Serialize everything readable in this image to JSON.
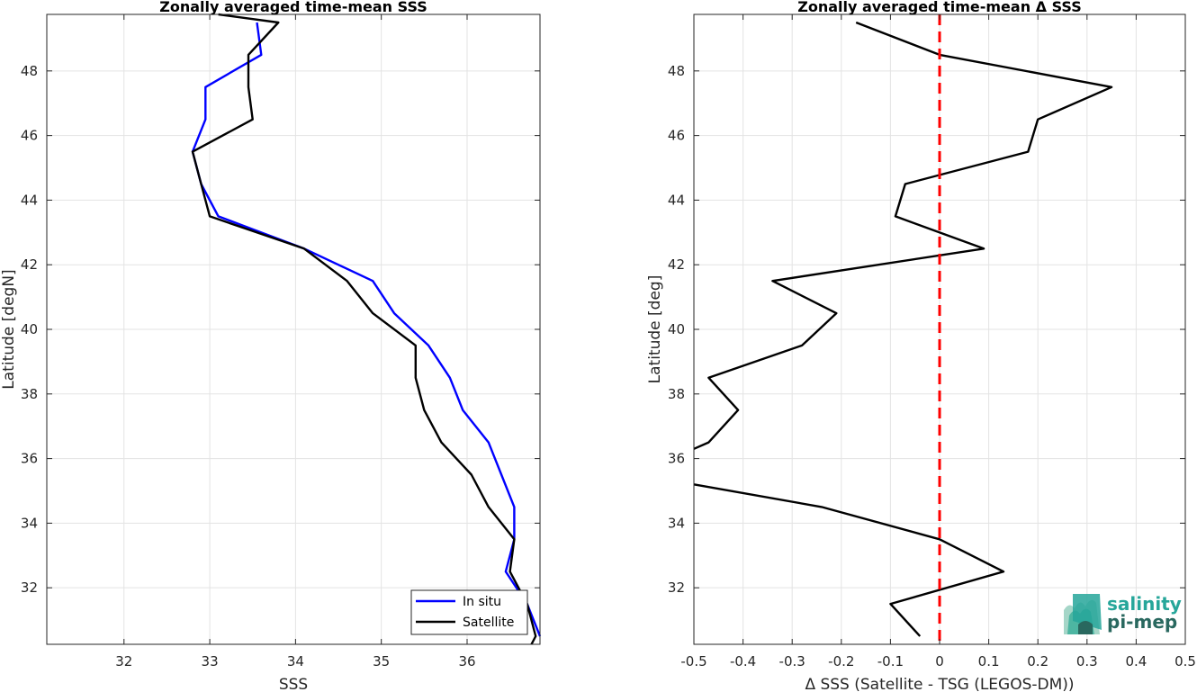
{
  "colors": {
    "insitu": "#0000ff",
    "satellite": "#000000",
    "zero_line": "#ff0000",
    "logo_teal": "#26a69a",
    "logo_dark": "#29685f"
  },
  "logo": {
    "line1": "salinity",
    "line2": "pi-mep"
  },
  "chart_data": [
    {
      "type": "line",
      "title": "Zonally averaged time-mean SSS",
      "xlabel": "SSS",
      "ylabel": "Latitude [degN]",
      "xlim": [
        31.1,
        36.85
      ],
      "ylim": [
        30.25,
        49.75
      ],
      "xticks": [
        32,
        33,
        34,
        35,
        36
      ],
      "yticks": [
        32,
        34,
        36,
        38,
        40,
        42,
        44,
        46,
        48
      ],
      "grid": true,
      "legend": "bottom-right",
      "series": [
        {
          "name": "In situ",
          "color": "#0000ff",
          "points": [
            [
              36.85,
              30.5
            ],
            [
              36.7,
              31.5
            ],
            [
              36.45,
              32.5
            ],
            [
              36.55,
              33.5
            ],
            [
              36.55,
              34.5
            ],
            [
              36.4,
              35.5
            ],
            [
              36.25,
              36.5
            ],
            [
              35.95,
              37.5
            ],
            [
              35.8,
              38.5
            ],
            [
              35.55,
              39.5
            ],
            [
              35.15,
              40.5
            ],
            [
              34.9,
              41.5
            ],
            [
              34.1,
              42.5
            ],
            [
              33.1,
              43.5
            ],
            [
              32.9,
              44.5
            ],
            [
              32.8,
              45.5
            ],
            [
              32.95,
              46.5
            ],
            [
              32.95,
              47.5
            ],
            [
              33.6,
              48.5
            ],
            [
              33.55,
              49.5
            ]
          ]
        },
        {
          "name": "Satellite",
          "color": "#000000",
          "points": [
            [
              36.75,
              30.25
            ],
            [
              36.8,
              30.5
            ],
            [
              36.7,
              31.5
            ],
            [
              36.5,
              32.5
            ],
            [
              36.55,
              33.5
            ],
            [
              36.25,
              34.5
            ],
            [
              36.05,
              35.5
            ],
            [
              35.7,
              36.5
            ],
            [
              35.5,
              37.5
            ],
            [
              35.4,
              38.5
            ],
            [
              35.4,
              39.5
            ],
            [
              34.9,
              40.5
            ],
            [
              34.6,
              41.5
            ],
            [
              34.1,
              42.5
            ],
            [
              33.0,
              43.5
            ],
            [
              32.9,
              44.5
            ],
            [
              32.8,
              45.5
            ],
            [
              33.5,
              46.5
            ],
            [
              33.45,
              47.5
            ],
            [
              33.45,
              48.5
            ],
            [
              33.8,
              49.5
            ],
            [
              33.1,
              49.75
            ]
          ]
        }
      ]
    },
    {
      "type": "line",
      "title": "Zonally averaged time-mean Δ SSS",
      "xlabel": "Δ SSS (Satellite - TSG (LEGOS-DM))",
      "ylabel": "Latitude [deg]",
      "xlim": [
        -0.5,
        0.5
      ],
      "ylim": [
        30.25,
        49.75
      ],
      "xticks": [
        -0.5,
        -0.4,
        -0.3,
        -0.2,
        -0.1,
        0,
        0.1,
        0.2,
        0.3,
        0.4,
        0.5
      ],
      "yticks": [
        32,
        34,
        36,
        38,
        40,
        42,
        44,
        46,
        48
      ],
      "grid": true,
      "reference_line_x": 0,
      "series": [
        {
          "color": "#000000",
          "segments": [
            [
              [
                -0.04,
                30.5
              ],
              [
                -0.1,
                31.5
              ],
              [
                0.13,
                32.5
              ],
              [
                0.0,
                33.5
              ],
              [
                -0.24,
                34.5
              ],
              [
                -0.5,
                35.2
              ]
            ],
            [
              [
                -0.5,
                36.3
              ],
              [
                -0.47,
                36.5
              ],
              [
                -0.41,
                37.5
              ],
              [
                -0.47,
                38.5
              ],
              [
                -0.28,
                39.5
              ],
              [
                -0.21,
                40.5
              ],
              [
                -0.34,
                41.5
              ],
              [
                0.09,
                42.5
              ],
              [
                -0.09,
                43.5
              ],
              [
                -0.07,
                44.5
              ],
              [
                0.18,
                45.5
              ],
              [
                0.2,
                46.5
              ],
              [
                0.35,
                47.5
              ],
              [
                0.0,
                48.5
              ],
              [
                -0.17,
                49.5
              ]
            ]
          ]
        }
      ]
    }
  ]
}
